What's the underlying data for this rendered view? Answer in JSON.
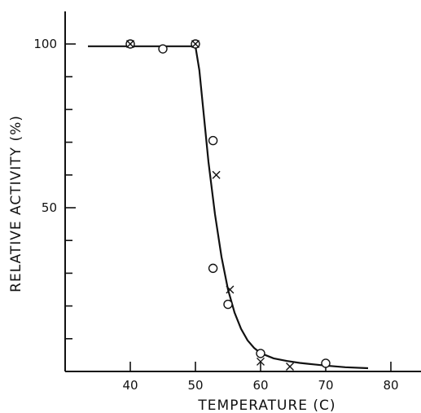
{
  "chart_data": {
    "type": "scatter",
    "title": "",
    "xlabel": "TEMPERATURE (C)",
    "ylabel": "RELATIVE ACTIVITY (%)",
    "xlim": [
      27,
      85
    ],
    "ylim": [
      0,
      110
    ],
    "x_ticks_major": [
      40,
      50,
      60,
      70,
      80
    ],
    "y_ticks_labeled": [
      50,
      100
    ],
    "y_ticks_minor": [
      10,
      20,
      30,
      40,
      60,
      70,
      80,
      90
    ],
    "grid": false,
    "legend": "none",
    "series": [
      {
        "marker": "circle",
        "points": [
          {
            "x": 40,
            "y": 100
          },
          {
            "x": 45,
            "y": 98.5
          },
          {
            "x": 50,
            "y": 100
          },
          {
            "x": 52.7,
            "y": 70.5
          },
          {
            "x": 52.7,
            "y": 31.5
          },
          {
            "x": 55,
            "y": 20.5
          },
          {
            "x": 60,
            "y": 5.5
          },
          {
            "x": 70,
            "y": 2.5
          }
        ]
      },
      {
        "marker": "cross",
        "points": [
          {
            "x": 40,
            "y": 100
          },
          {
            "x": 50,
            "y": 100
          },
          {
            "x": 53.2,
            "y": 60
          },
          {
            "x": 55.3,
            "y": 25
          },
          {
            "x": 60,
            "y": 3
          },
          {
            "x": 64.5,
            "y": 1.5
          }
        ]
      },
      {
        "kind": "fit-curve",
        "points": [
          {
            "x": 33.5,
            "y": 99.3
          },
          {
            "x": 40,
            "y": 99.3
          },
          {
            "x": 45,
            "y": 99.3
          },
          {
            "x": 50,
            "y": 99.3
          },
          {
            "x": 50.6,
            "y": 92
          },
          {
            "x": 51.2,
            "y": 80
          },
          {
            "x": 52,
            "y": 64
          },
          {
            "x": 53,
            "y": 48
          },
          {
            "x": 54,
            "y": 35
          },
          {
            "x": 55,
            "y": 25
          },
          {
            "x": 56,
            "y": 18
          },
          {
            "x": 57,
            "y": 13
          },
          {
            "x": 58,
            "y": 9.5
          },
          {
            "x": 59,
            "y": 7.2
          },
          {
            "x": 60,
            "y": 5.6
          },
          {
            "x": 62,
            "y": 4.0
          },
          {
            "x": 64,
            "y": 3.2
          },
          {
            "x": 66,
            "y": 2.6
          },
          {
            "x": 68,
            "y": 2.2
          },
          {
            "x": 70,
            "y": 1.8
          },
          {
            "x": 73,
            "y": 1.3
          },
          {
            "x": 76.5,
            "y": 1.0
          }
        ]
      }
    ]
  }
}
